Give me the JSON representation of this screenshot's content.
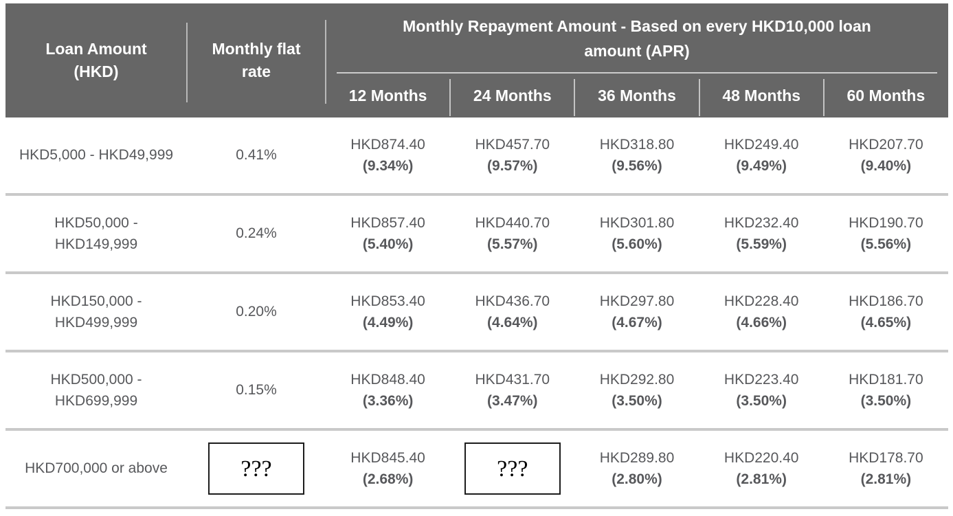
{
  "table": {
    "header": {
      "loan_amount_label": "Loan Amount\n(HKD)",
      "flat_rate_label": "Monthly flat\nrate",
      "repayment_group_title": "Monthly Repayment Amount - Based on every HKD10,000 loan\namount (APR)",
      "months": [
        "12 Months",
        "24 Months",
        "36 Months",
        "48 Months",
        "60 Months"
      ]
    },
    "placeholder": "???",
    "rows": [
      {
        "loan_range": "HKD5,000 - HKD49,999",
        "flat_rate": "0.41%",
        "cells": [
          {
            "amount": "HKD874.40",
            "apr": "(9.34%)"
          },
          {
            "amount": "HKD457.70",
            "apr": "(9.57%)"
          },
          {
            "amount": "HKD318.80",
            "apr": "(9.56%)"
          },
          {
            "amount": "HKD249.40",
            "apr": "(9.49%)"
          },
          {
            "amount": "HKD207.70",
            "apr": "(9.40%)"
          }
        ]
      },
      {
        "loan_range": "HKD50,000 -\nHKD149,999",
        "flat_rate": "0.24%",
        "cells": [
          {
            "amount": "HKD857.40",
            "apr": "(5.40%)"
          },
          {
            "amount": "HKD440.70",
            "apr": "(5.57%)"
          },
          {
            "amount": "HKD301.80",
            "apr": "(5.60%)"
          },
          {
            "amount": "HKD232.40",
            "apr": "(5.59%)"
          },
          {
            "amount": "HKD190.70",
            "apr": "(5.56%)"
          }
        ]
      },
      {
        "loan_range": "HKD150,000 -\nHKD499,999",
        "flat_rate": "0.20%",
        "cells": [
          {
            "amount": "HKD853.40",
            "apr": "(4.49%)"
          },
          {
            "amount": "HKD436.70",
            "apr": "(4.64%)"
          },
          {
            "amount": "HKD297.80",
            "apr": "(4.67%)"
          },
          {
            "amount": "HKD228.40",
            "apr": "(4.66%)"
          },
          {
            "amount": "HKD186.70",
            "apr": "(4.65%)"
          }
        ]
      },
      {
        "loan_range": "HKD500,000 -\nHKD699,999",
        "flat_rate": "0.15%",
        "cells": [
          {
            "amount": "HKD848.40",
            "apr": "(3.36%)"
          },
          {
            "amount": "HKD431.70",
            "apr": "(3.47%)"
          },
          {
            "amount": "HKD292.80",
            "apr": "(3.50%)"
          },
          {
            "amount": "HKD223.40",
            "apr": "(3.50%)"
          },
          {
            "amount": "HKD181.70",
            "apr": "(3.50%)"
          }
        ]
      },
      {
        "loan_range": "HKD700,000 or above",
        "flat_rate": "???",
        "flat_rate_hidden": true,
        "cells": [
          {
            "amount": "HKD845.40",
            "apr": "(2.68%)"
          },
          {
            "placeholder": "???",
            "hidden": true
          },
          {
            "amount": "HKD289.80",
            "apr": "(2.80%)"
          },
          {
            "amount": "HKD220.40",
            "apr": "(2.81%)"
          },
          {
            "amount": "HKD178.70",
            "apr": "(2.81%)"
          }
        ]
      }
    ]
  },
  "colors": {
    "header_background": "#666666",
    "header_text": "#ffffff",
    "header_divider": "#b9b9b9",
    "body_text": "#57585b",
    "row_separator": "#c9c9c9",
    "placeholder_box_border": "#1c1c1c"
  },
  "chart_data": {
    "type": "table",
    "title": "Monthly Repayment Amount - Based on every HKD10,000 loan amount (APR)",
    "columns": [
      "Loan Amount (HKD)",
      "Monthly flat rate",
      "12 Months",
      "24 Months",
      "36 Months",
      "48 Months",
      "60 Months"
    ],
    "rows": [
      [
        "HKD5,000 - HKD49,999",
        "0.41%",
        "HKD874.40 (9.34%)",
        "HKD457.70 (9.57%)",
        "HKD318.80 (9.56%)",
        "HKD249.40 (9.49%)",
        "HKD207.70 (9.40%)"
      ],
      [
        "HKD50,000 - HKD149,999",
        "0.24%",
        "HKD857.40 (5.40%)",
        "HKD440.70 (5.57%)",
        "HKD301.80 (5.60%)",
        "HKD232.40 (5.59%)",
        "HKD190.70 (5.56%)"
      ],
      [
        "HKD150,000 - HKD499,999",
        "0.20%",
        "HKD853.40 (4.49%)",
        "HKD436.70 (4.64%)",
        "HKD297.80 (4.67%)",
        "HKD228.40 (4.66%)",
        "HKD186.70 (4.65%)"
      ],
      [
        "HKD500,000 - HKD699,999",
        "0.15%",
        "HKD848.40 (3.36%)",
        "HKD431.70 (3.47%)",
        "HKD292.80 (3.50%)",
        "HKD223.40 (3.50%)",
        "HKD181.70 (3.50%)"
      ],
      [
        "HKD700,000 or above",
        "???",
        "HKD845.40 (2.68%)",
        "???",
        "HKD289.80 (2.80%)",
        "HKD220.40 (2.81%)",
        "HKD178.70 (2.81%)"
      ]
    ]
  }
}
